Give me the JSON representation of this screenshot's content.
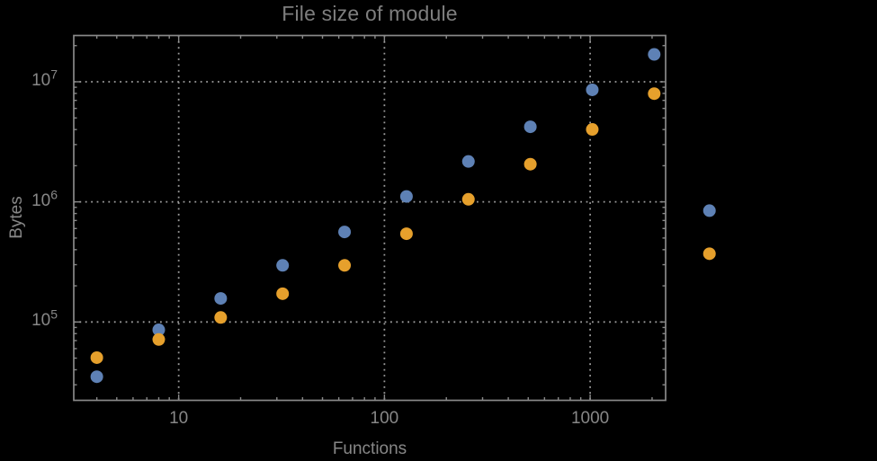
{
  "page": {
    "background_color": "#000000"
  },
  "chart_data": {
    "type": "scatter",
    "title": "File size of module",
    "xlabel": "Functions",
    "ylabel": "Bytes",
    "x_scale": "log",
    "y_scale": "log",
    "xlim": [
      3.09,
      2327
    ],
    "ylim": [
      22260,
      24280000
    ],
    "grid": "dotted-major",
    "legend": "none",
    "x": [
      4,
      8,
      16,
      32,
      64,
      128,
      256,
      512,
      1024,
      2048,
      3800
    ],
    "series": [
      {
        "name": "series-blue",
        "color": "#5e81b5",
        "values": [
          35000,
          86000,
          157000,
          296000,
          562000,
          1110000,
          2170000,
          4220000,
          8570000,
          16900000,
          845000
        ]
      },
      {
        "name": "series-orange",
        "color": "#e6a02c",
        "values": [
          50500,
          71500,
          109000,
          172000,
          296000,
          543000,
          1050000,
          2060000,
          4010000,
          7960000,
          370000
        ]
      }
    ],
    "x_major_ticks": [
      {
        "value": 10,
        "label": "10"
      },
      {
        "value": 100,
        "label": "100"
      },
      {
        "value": 1000,
        "label": "1000"
      }
    ],
    "y_major_ticks": [
      {
        "value": 10000000,
        "label_base": "10",
        "label_exp": "7"
      },
      {
        "value": 1000000,
        "label_base": "10",
        "label_exp": "6"
      },
      {
        "value": 100000,
        "label_base": "10",
        "label_exp": "5"
      }
    ],
    "styles": {
      "grid_color": "#9b9b9b",
      "frame_color": "#898989",
      "text_color": "#878787",
      "marker_radius": 7
    }
  }
}
